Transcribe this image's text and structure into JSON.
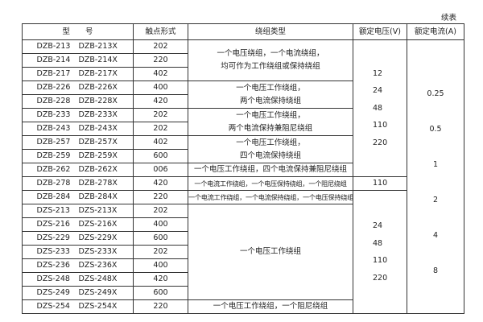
{
  "continued_label": "续表",
  "headers": [
    "型　　号",
    "触点形式",
    "绕组类型",
    "额定电压(V)",
    "额定电流(A)"
  ],
  "rows": [
    {
      "m1": "DZB-213",
      "m2": "DZB-213X",
      "contact": "202"
    },
    {
      "m1": "DZB-214",
      "m2": "DZB-214X",
      "contact": "220"
    },
    {
      "m1": "DZB-217",
      "m2": "DZB-217X",
      "contact": "402"
    },
    {
      "m1": "DZB-226",
      "m2": "DZB-226X",
      "contact": "400"
    },
    {
      "m1": "DZB-228",
      "m2": "DZB-228X",
      "contact": "420"
    },
    {
      "m1": "DZB-233",
      "m2": "DZB-233X",
      "contact": "202"
    },
    {
      "m1": "DZB-243",
      "m2": "DZB-243X",
      "contact": "202"
    },
    {
      "m1": "DZB-257",
      "m2": "DZB-257X",
      "contact": "402"
    },
    {
      "m1": "DZB-259",
      "m2": "DZB-259X",
      "contact": "600"
    },
    {
      "m1": "DZB-262",
      "m2": "DZB-262X",
      "contact": "006"
    },
    {
      "m1": "DZB-278",
      "m2": "DZB-278X",
      "contact": "420"
    },
    {
      "m1": "DZB-284",
      "m2": "DZB-284X",
      "contact": "220"
    },
    {
      "m1": "DZS-213",
      "m2": "DZS-213X",
      "contact": "202"
    },
    {
      "m1": "DZS-216",
      "m2": "DZS-216X",
      "contact": "400"
    },
    {
      "m1": "DZS-229",
      "m2": "DZS-229X",
      "contact": "600"
    },
    {
      "m1": "DZS-233",
      "m2": "DZS-233X",
      "contact": "202"
    },
    {
      "m1": "DZS-236",
      "m2": "DZS-236X",
      "contact": "400"
    },
    {
      "m1": "DZS-248",
      "m2": "DZS-248X",
      "contact": "420"
    },
    {
      "m1": "DZS-249",
      "m2": "DZS-249X",
      "contact": "600"
    },
    {
      "m1": "DZS-254",
      "m2": "DZS-254X",
      "contact": "220"
    }
  ],
  "winding": [
    [
      "一个电压绕组，一个电流绕组，",
      "均可作为工作绕组或保持绕组"
    ],
    [
      "一个电压工作绕组，",
      "两个电流保持绕组"
    ],
    [
      "一个电压工作绕组，",
      "两个电流保持兼阻尼绕组"
    ],
    [
      "一个电压工作绕组，",
      "四个电流保持绕组"
    ],
    [
      "一个电压工作绕组，四个电流保持兼阻尼绕组"
    ],
    [
      "一个电流工作绕组，一个电压保持绕组，一个阻尼绕组"
    ],
    [
      "一个电流工作绕组，一个电流保持绕组，一个电压保持绕组"
    ],
    [
      "一个电压工作绕组"
    ],
    [
      "一个电压工作绕组，一个阻尼绕组"
    ]
  ],
  "voltage": [
    [
      "12",
      "24",
      "48",
      "110",
      "220"
    ],
    [
      "110"
    ],
    [
      "24",
      "48",
      "110",
      "220"
    ]
  ],
  "current": [
    "0.25",
    "0.5",
    "1",
    "2",
    "4",
    "8"
  ]
}
